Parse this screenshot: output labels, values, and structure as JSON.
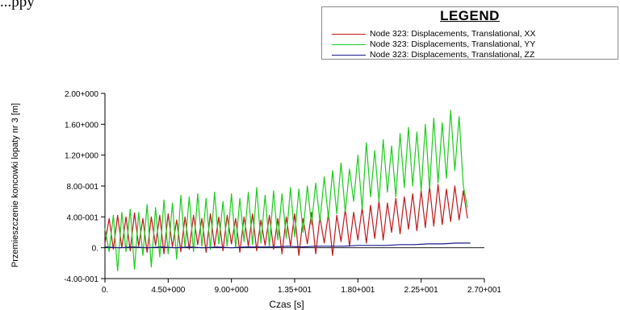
{
  "top_text": "...ppy",
  "legend": {
    "title": "LEGEND",
    "items": [
      {
        "label": "Node 323: Displacements, Translational, XX",
        "color": "#c0181c"
      },
      {
        "label": "Node 323: Displacements, Translational, YY",
        "color": "#1ecb1e"
      },
      {
        "label": "Node 323: Displacements, Translational, ZZ",
        "color": "#1a1a8c"
      }
    ]
  },
  "chart_data": {
    "type": "line",
    "xlabel": "Czas [s]",
    "ylabel": "Przemieszczenie koncowki lopaty nr 3 [m]",
    "xlim": [
      0,
      27
    ],
    "ylim": [
      -0.4,
      2.0
    ],
    "x_ticks": [
      {
        "value": 0,
        "label": "0."
      },
      {
        "value": 4.5,
        "label": "4.50+000"
      },
      {
        "value": 9,
        "label": "9.00+000"
      },
      {
        "value": 13.5,
        "label": "1.35+001"
      },
      {
        "value": 18,
        "label": "1.80+001"
      },
      {
        "value": 22.5,
        "label": "2.25+001"
      },
      {
        "value": 27,
        "label": "2.70+001"
      }
    ],
    "y_ticks": [
      {
        "value": 2.0,
        "label": "2.00+000"
      },
      {
        "value": 1.6,
        "label": "1.60+000"
      },
      {
        "value": 1.2,
        "label": "1.20+000"
      },
      {
        "value": 0.8,
        "label": "8.00-001"
      },
      {
        "value": 0.4,
        "label": "4.00-001"
      },
      {
        "value": 0.0,
        "label": "0."
      },
      {
        "value": -0.4,
        "label": "-4.00-001"
      }
    ],
    "series": [
      {
        "name": "Node 323: Displacements, Translational, XX",
        "color": "#c0181c",
        "x": [
          0,
          0.3,
          0.6,
          0.9,
          1.2,
          1.5,
          1.8,
          2.1,
          2.4,
          2.7,
          3.0,
          3.3,
          3.6,
          3.9,
          4.2,
          4.5,
          4.8,
          5.1,
          5.4,
          5.7,
          6.0,
          6.3,
          6.6,
          6.9,
          7.2,
          7.5,
          7.8,
          8.1,
          8.4,
          8.7,
          9.0,
          9.3,
          9.6,
          9.9,
          10.2,
          10.5,
          10.8,
          11.1,
          11.4,
          11.7,
          12.0,
          12.3,
          12.6,
          12.9,
          13.2,
          13.5,
          13.8,
          14.1,
          14.4,
          14.7,
          15.0,
          15.3,
          15.6,
          15.9,
          16.2,
          16.5,
          16.8,
          17.1,
          17.4,
          17.7,
          18.0,
          18.3,
          18.6,
          18.9,
          19.2,
          19.5,
          19.8,
          20.1,
          20.4,
          20.7,
          21.0,
          21.3,
          21.6,
          21.9,
          22.2,
          22.5,
          22.8,
          23.1,
          23.4,
          23.7,
          24.0,
          24.3,
          24.6,
          24.9,
          25.2,
          25.5,
          25.8
        ],
        "y": [
          0.05,
          0.38,
          -0.02,
          0.42,
          0.0,
          0.4,
          -0.04,
          0.45,
          0.02,
          0.38,
          -0.06,
          0.4,
          0.03,
          0.42,
          -0.08,
          0.44,
          0.01,
          0.36,
          -0.05,
          0.4,
          -0.02,
          0.42,
          0.04,
          0.38,
          -0.06,
          0.44,
          0.02,
          0.4,
          -0.04,
          0.42,
          0.05,
          0.38,
          -0.06,
          0.4,
          0.02,
          0.44,
          -0.04,
          0.36,
          0.03,
          0.42,
          -0.02,
          0.38,
          -0.08,
          0.4,
          0.02,
          0.44,
          -0.1,
          0.38,
          0.05,
          0.46,
          -0.08,
          0.4,
          0.06,
          0.44,
          -0.1,
          0.42,
          0.08,
          0.5,
          0.02,
          0.46,
          0.1,
          0.52,
          0.06,
          0.55,
          0.12,
          0.6,
          0.1,
          0.58,
          0.2,
          0.64,
          0.18,
          0.66,
          0.24,
          0.7,
          0.22,
          0.74,
          0.26,
          0.8,
          0.28,
          0.82,
          0.3,
          0.76,
          0.34,
          0.8,
          0.36,
          0.74,
          0.38
        ]
      },
      {
        "name": "Node 323: Displacements, Translational, YY",
        "color": "#1ecb1e",
        "x": [
          0,
          0.3,
          0.6,
          0.9,
          1.2,
          1.5,
          1.8,
          2.1,
          2.4,
          2.7,
          3.0,
          3.3,
          3.6,
          3.9,
          4.2,
          4.5,
          4.8,
          5.1,
          5.4,
          5.7,
          6.0,
          6.3,
          6.6,
          6.9,
          7.2,
          7.5,
          7.8,
          8.1,
          8.4,
          8.7,
          9.0,
          9.3,
          9.6,
          9.9,
          10.2,
          10.5,
          10.8,
          11.1,
          11.4,
          11.7,
          12.0,
          12.3,
          12.6,
          12.9,
          13.2,
          13.5,
          13.8,
          14.1,
          14.4,
          14.7,
          15.0,
          15.3,
          15.6,
          15.9,
          16.2,
          16.5,
          16.8,
          17.1,
          17.4,
          17.7,
          18.0,
          18.3,
          18.6,
          18.9,
          19.2,
          19.5,
          19.8,
          20.1,
          20.4,
          20.7,
          21.0,
          21.3,
          21.6,
          21.9,
          22.2,
          22.5,
          22.8,
          23.1,
          23.4,
          23.7,
          24.0,
          24.3,
          24.6,
          24.9,
          25.2,
          25.5,
          25.8
        ],
        "y": [
          0.25,
          -0.05,
          0.42,
          -0.3,
          0.46,
          -0.05,
          0.5,
          -0.28,
          0.46,
          -0.1,
          0.56,
          -0.25,
          0.52,
          -0.12,
          0.62,
          -0.08,
          0.58,
          -0.15,
          0.68,
          0.0,
          0.66,
          -0.05,
          0.7,
          0.02,
          0.64,
          -0.02,
          0.72,
          0.05,
          0.6,
          0.02,
          0.7,
          0.0,
          0.64,
          0.08,
          0.72,
          0.04,
          0.78,
          0.06,
          0.68,
          0.02,
          0.74,
          0.1,
          0.7,
          0.12,
          0.78,
          0.14,
          0.76,
          0.2,
          0.8,
          0.3,
          0.84,
          0.34,
          0.92,
          0.38,
          1.0,
          0.44,
          1.1,
          0.46,
          1.02,
          0.6,
          1.2,
          0.5,
          1.36,
          0.66,
          1.26,
          0.6,
          1.4,
          0.72,
          1.32,
          0.66,
          1.48,
          0.78,
          1.56,
          0.8,
          1.5,
          0.74,
          1.6,
          0.76,
          1.68,
          0.84,
          1.62,
          0.9,
          1.78,
          1.0,
          1.7,
          0.8,
          0.52
        ]
      },
      {
        "name": "Node 323: Displacements, Translational, ZZ",
        "color": "#1a1a8c",
        "x": [
          0,
          1,
          2,
          3,
          4,
          5,
          6,
          7,
          8,
          9,
          10,
          11,
          12,
          13,
          14,
          15,
          16,
          17,
          18,
          19,
          20,
          21,
          22,
          23,
          24,
          25,
          26
        ],
        "y": [
          0.01,
          0.0,
          0.01,
          0.0,
          0.01,
          0.0,
          0.01,
          0.0,
          0.01,
          0.0,
          0.01,
          0.01,
          0.01,
          0.02,
          0.01,
          0.02,
          0.02,
          0.02,
          0.03,
          0.03,
          0.03,
          0.04,
          0.04,
          0.05,
          0.05,
          0.06,
          0.06
        ]
      }
    ],
    "grid": false
  }
}
